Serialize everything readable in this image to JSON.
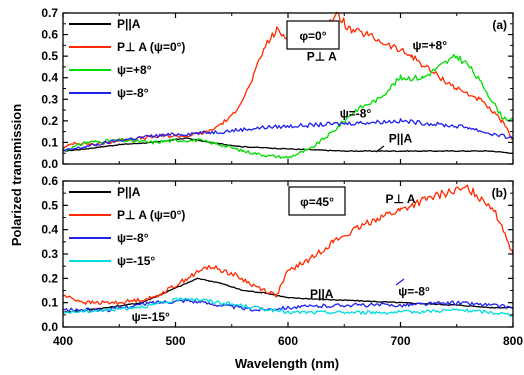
{
  "xlabel": "Wavelength (nm)",
  "ylabel": "Polarized transmission",
  "chart_data": [
    {
      "type": "line",
      "panel": "(a)",
      "box_label": "φ=0°",
      "xlim": [
        400,
        800
      ],
      "ylim": [
        0.0,
        0.7
      ],
      "xticks": [
        "400",
        "500",
        "600",
        "700",
        "800"
      ],
      "yticks": [
        "0.0",
        "0.1",
        "0.2",
        "0.3",
        "0.4",
        "0.5",
        "0.6",
        "0.7"
      ],
      "legend_position": "top-left",
      "series": [
        {
          "name": "P||A",
          "color": "#000000",
          "x": [
            400,
            420,
            450,
            480,
            510,
            530,
            560,
            600,
            650,
            700,
            750,
            780,
            800
          ],
          "y": [
            0.06,
            0.07,
            0.09,
            0.1,
            0.12,
            0.1,
            0.08,
            0.07,
            0.06,
            0.06,
            0.06,
            0.06,
            0.05
          ]
        },
        {
          "name": "P⊥ A (ψ=0°)",
          "color": "#ff2a00",
          "x": [
            400,
            410,
            430,
            450,
            470,
            490,
            510,
            530,
            550,
            565,
            580,
            590,
            600,
            615,
            630,
            645,
            655,
            670,
            690,
            710,
            730,
            750,
            770,
            790,
            800
          ],
          "y": [
            0.07,
            0.1,
            0.09,
            0.11,
            0.12,
            0.13,
            0.13,
            0.15,
            0.22,
            0.35,
            0.55,
            0.62,
            0.58,
            0.62,
            0.63,
            0.69,
            0.62,
            0.6,
            0.55,
            0.5,
            0.42,
            0.35,
            0.3,
            0.2,
            0.11
          ]
        },
        {
          "name": "ψ=+8°",
          "color": "#00dd00",
          "x": [
            400,
            420,
            450,
            480,
            500,
            520,
            540,
            560,
            580,
            600,
            620,
            640,
            660,
            680,
            700,
            720,
            740,
            750,
            760,
            775,
            790,
            800
          ],
          "y": [
            0.06,
            0.1,
            0.11,
            0.1,
            0.11,
            0.11,
            0.09,
            0.06,
            0.04,
            0.03,
            0.07,
            0.15,
            0.25,
            0.3,
            0.4,
            0.4,
            0.47,
            0.5,
            0.46,
            0.35,
            0.22,
            0.2
          ]
        },
        {
          "name": "ψ=-8°",
          "color": "#2222ee",
          "x": [
            400,
            420,
            450,
            480,
            510,
            540,
            580,
            620,
            660,
            700,
            740,
            760,
            780,
            800
          ],
          "y": [
            0.06,
            0.08,
            0.11,
            0.13,
            0.14,
            0.15,
            0.17,
            0.18,
            0.19,
            0.2,
            0.18,
            0.17,
            0.14,
            0.12
          ]
        }
      ],
      "annotations": [
        {
          "text": "P⊥ A",
          "x": 630,
          "y": 0.48
        },
        {
          "text": "ψ=+8°",
          "x": 726,
          "y": 0.53
        },
        {
          "text": "ψ=-8°",
          "x": 660,
          "y": 0.215
        },
        {
          "text": "P||A",
          "x": 700,
          "y": 0.1
        }
      ]
    },
    {
      "type": "line",
      "panel": "(b)",
      "box_label": "φ=45°",
      "xlim": [
        400,
        800
      ],
      "ylim": [
        0.0,
        0.6
      ],
      "xticks": [
        "400",
        "500",
        "600",
        "700",
        "800"
      ],
      "yticks": [
        "0.0",
        "0.1",
        "0.2",
        "0.3",
        "0.4",
        "0.5",
        "0.6"
      ],
      "legend_position": "top-left",
      "series": [
        {
          "name": "P||A",
          "color": "#000000",
          "x": [
            400,
            440,
            470,
            500,
            520,
            540,
            560,
            580,
            600,
            650,
            700,
            750,
            780,
            800
          ],
          "y": [
            0.06,
            0.08,
            0.1,
            0.16,
            0.2,
            0.18,
            0.15,
            0.14,
            0.12,
            0.11,
            0.1,
            0.09,
            0.08,
            0.08
          ]
        },
        {
          "name": "P⊥ A (ψ=0°)",
          "color": "#ff2a00",
          "x": [
            400,
            420,
            450,
            480,
            500,
            510,
            530,
            550,
            570,
            590,
            600,
            620,
            640,
            660,
            680,
            700,
            720,
            740,
            760,
            780,
            790,
            800
          ],
          "y": [
            0.13,
            0.1,
            0.1,
            0.12,
            0.17,
            0.2,
            0.25,
            0.22,
            0.17,
            0.13,
            0.23,
            0.28,
            0.35,
            0.4,
            0.45,
            0.48,
            0.52,
            0.55,
            0.57,
            0.5,
            0.42,
            0.3
          ]
        },
        {
          "name": "ψ=-8°",
          "color": "#2222ee",
          "x": [
            400,
            440,
            480,
            510,
            540,
            570,
            600,
            650,
            700,
            750,
            780,
            800
          ],
          "y": [
            0.07,
            0.07,
            0.1,
            0.11,
            0.09,
            0.07,
            0.08,
            0.09,
            0.09,
            0.1,
            0.09,
            0.08
          ]
        },
        {
          "name": "ψ=-15°",
          "color": "#00dddd",
          "x": [
            400,
            440,
            480,
            510,
            540,
            570,
            600,
            650,
            700,
            750,
            780,
            800
          ],
          "y": [
            0.06,
            0.07,
            0.09,
            0.12,
            0.1,
            0.08,
            0.06,
            0.06,
            0.06,
            0.07,
            0.06,
            0.05
          ]
        }
      ],
      "annotations": [
        {
          "text": "P⊥ A",
          "x": 700,
          "y": 0.51
        },
        {
          "text": "P||A",
          "x": 630,
          "y": 0.12
        },
        {
          "text": "ψ=-8°",
          "x": 712,
          "y": 0.13
        },
        {
          "text": "ψ=-15°",
          "x": 478,
          "y": 0.025
        }
      ]
    }
  ]
}
